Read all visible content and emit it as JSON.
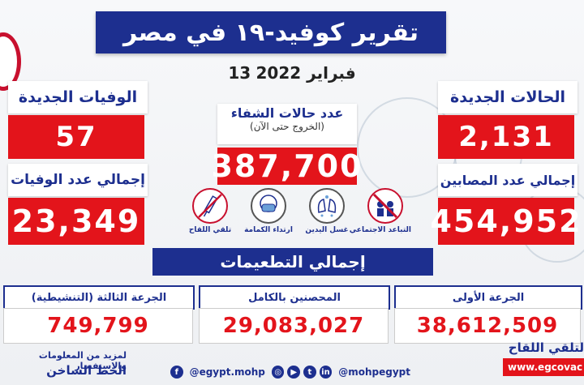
{
  "title": "تقرير كوفيد-١٩ في مصر",
  "date": {
    "day": "13",
    "month_year": "فبراير 2022"
  },
  "new_cases": {
    "label": "الحالات الجديدة",
    "value": "2,131"
  },
  "total_cases": {
    "label": "إجمالي عدد المصابين",
    "value": "454,952"
  },
  "new_deaths": {
    "label": "الوفيات الجديدة",
    "value": "57"
  },
  "total_deaths": {
    "label": "إجمالي عدد الوفيات",
    "value": "23,349"
  },
  "recovered": {
    "label": "عدد حالات الشفاء",
    "sublabel": "(الخروج حتى الآن)",
    "value": "387,700"
  },
  "precautions": [
    {
      "label": "التباعد الاجتماعي",
      "icon": "social-distancing-icon"
    },
    {
      "label": "غسل اليدين",
      "icon": "hand-washing-icon"
    },
    {
      "label": "ارتداء الكمامة",
      "icon": "mask-icon"
    },
    {
      "label": "تلقي اللقاح",
      "icon": "vaccine-icon"
    }
  ],
  "vaccination": {
    "title": "إجمالي التطعيمات",
    "first_dose": {
      "label": "الجرعة الأولى",
      "value": "38,612,509"
    },
    "fully_vaccinated": {
      "label": "المحصنين بالكامل",
      "value": "29,083,027"
    },
    "booster": {
      "label": "الجرعة الثالثة (التنشيطية)",
      "value": "749,799"
    }
  },
  "footer": {
    "info_line": "لمزيد من المعلومات والاستفسار",
    "hotline_label": "الخط الساخن",
    "social_handle_1": "@egypt.mohp",
    "social_handle_2": "@mohpegypt",
    "vaccine_title": "لتلقي اللقاح",
    "vaccine_link": "www.egcovac"
  },
  "colors": {
    "navy": "#1d2f8f",
    "red": "#e3141b",
    "white": "#ffffff"
  }
}
